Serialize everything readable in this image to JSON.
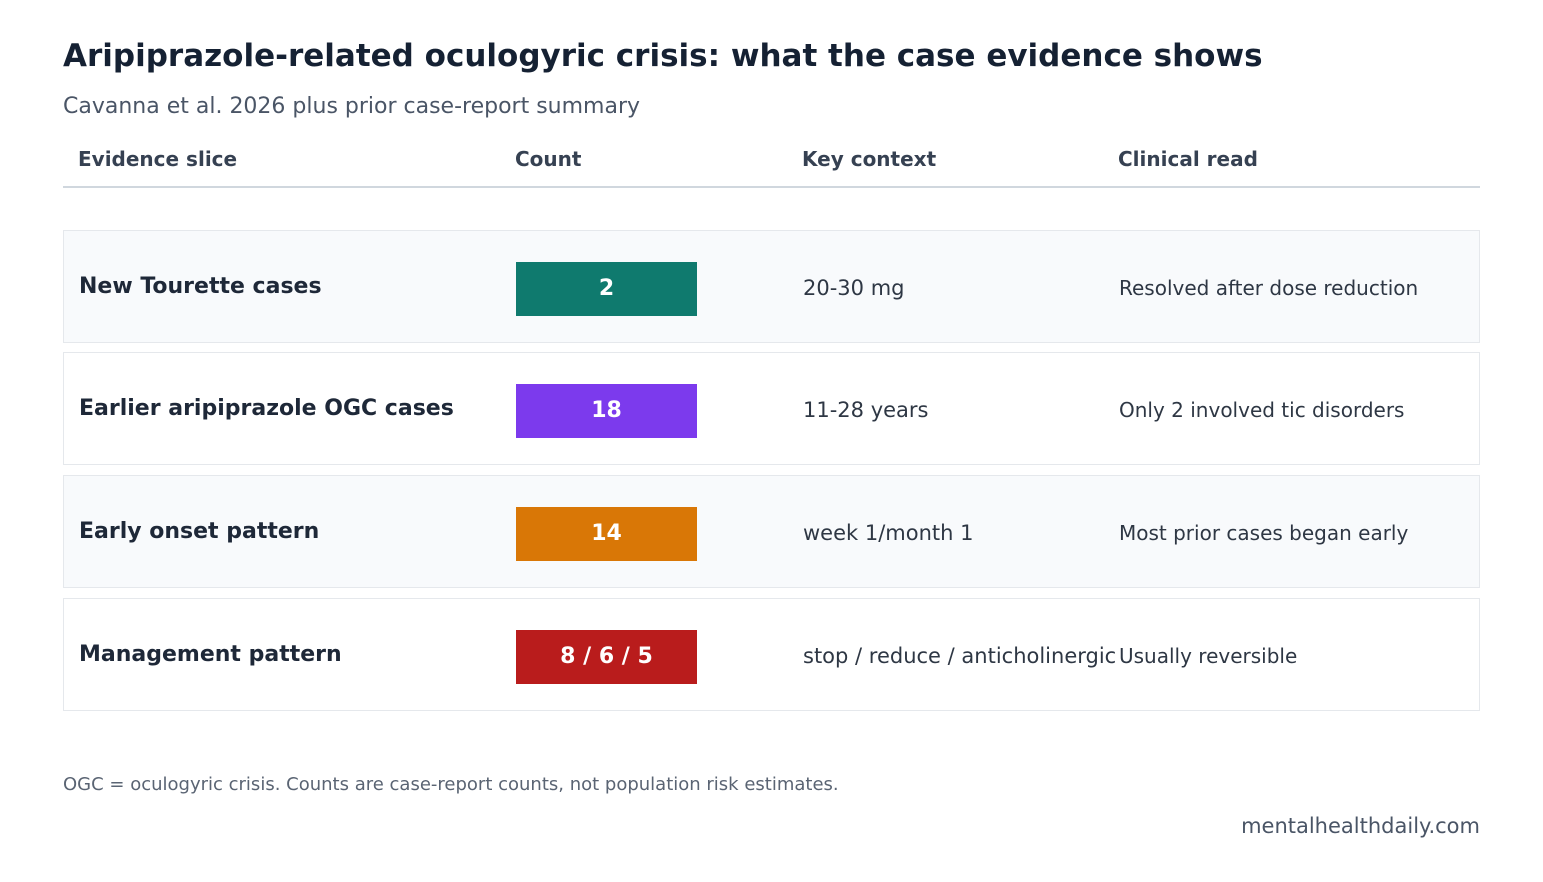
{
  "title": "Aripiprazole-related oculogyric crisis: what the case evidence shows",
  "subtitle": "Cavanna et al. 2026 plus prior case-report summary",
  "columns": [
    "Evidence slice",
    "Count",
    "Key context",
    "Clinical read"
  ],
  "rows": [
    {
      "slice": "New Tourette cases",
      "count": "2",
      "context": "20-30 mg",
      "read": "Resolved after dose reduction",
      "color": "#0f7a6e"
    },
    {
      "slice": "Earlier aripiprazole OGC cases",
      "count": "18",
      "context": "11-28 years",
      "read": "Only 2 involved tic disorders",
      "color": "#7c3aed"
    },
    {
      "slice": "Early onset pattern",
      "count": "14",
      "context": "week 1/month 1",
      "read": "Most prior cases began early",
      "color": "#d97706"
    },
    {
      "slice": "Management pattern",
      "count": "8 / 6 / 5",
      "context": "stop / reduce / anticholinergic",
      "read": "Usually reversible",
      "color": "#b91c1c"
    }
  ],
  "footnote": "OGC = oculogyric crisis. Counts are case-report counts, not population risk estimates.",
  "source": "mentalhealthdaily.com"
}
